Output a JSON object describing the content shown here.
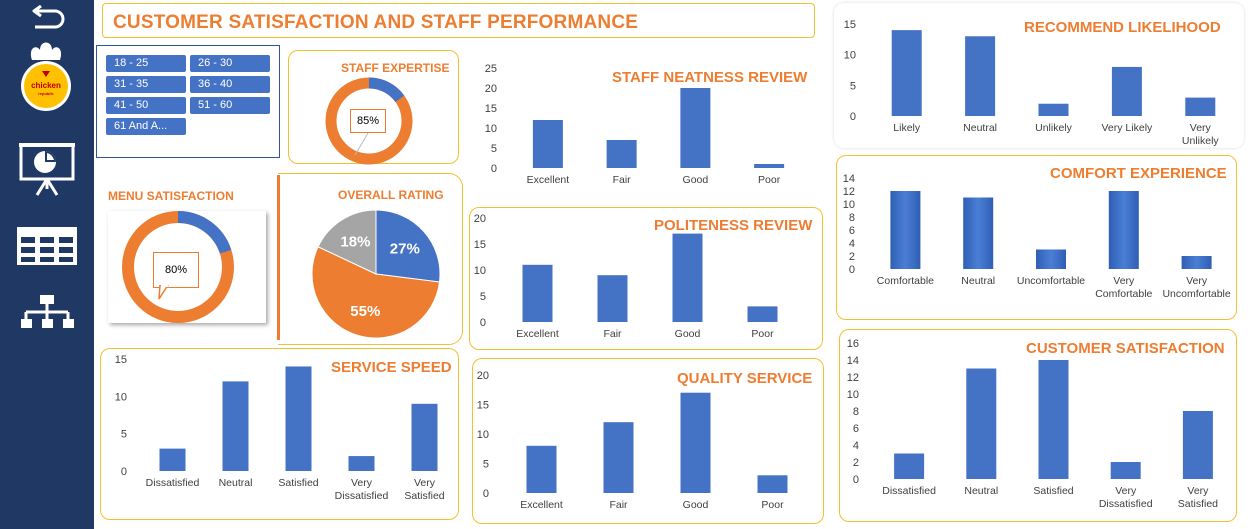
{
  "title": "CUSTOMER SATISFACTION AND STAFF PERFORMANCE",
  "logo": {
    "main": "chicken",
    "sub": "republic"
  },
  "sidebar": {
    "items": [
      {
        "name": "back",
        "icon": "back-arrow-icon"
      },
      {
        "name": "presentation",
        "icon": "presentation-board-icon"
      },
      {
        "name": "table",
        "icon": "table-grid-icon"
      },
      {
        "name": "hierarchy",
        "icon": "org-chart-icon"
      }
    ]
  },
  "age_slicer": {
    "options": [
      "18 - 25",
      "26 - 30",
      "31 - 35",
      "36 - 40",
      "41 - 50",
      "51 - 60",
      "61 And A..."
    ]
  },
  "colors": {
    "accent": "#ed7d31",
    "bar": "#4472c4",
    "border": "#f4c02f",
    "sidebar": "#1f3864",
    "grey": "#a5a5a5"
  },
  "staff_expertise": {
    "title": "STAFF EXPERTISE",
    "label": "85%",
    "value": 85
  },
  "menu_satisfaction": {
    "title": "MENU SATISFACTION",
    "label": "80%",
    "value": 80
  },
  "overall_rating": {
    "title": "OVERALL  RATING",
    "slices": [
      {
        "label": "27%",
        "value": 27,
        "color": "#4472c4"
      },
      {
        "label": "55%",
        "value": 55,
        "color": "#ed7d31"
      },
      {
        "label": "18%",
        "value": 18,
        "color": "#a5a5a5"
      }
    ]
  },
  "chart_data": [
    {
      "id": "service_speed",
      "type": "bar",
      "title": "SERVICE SPEED",
      "categories": [
        "Dissatisfied",
        "Neutral",
        "Satisfied",
        "Very Dissatisfied",
        "Very Satisfied"
      ],
      "values": [
        3,
        12,
        14,
        2,
        9
      ],
      "yticks": [
        "0",
        "5",
        "10",
        "15"
      ],
      "ylim": [
        0,
        15
      ]
    },
    {
      "id": "staff_neatness",
      "type": "bar",
      "title": "STAFF NEATNESS REVIEW",
      "categories": [
        "Excellent",
        "Fair",
        "Good",
        "Poor"
      ],
      "values": [
        12,
        7,
        20,
        1
      ],
      "yticks": [
        "0",
        "5",
        "10",
        "15",
        "20",
        "25"
      ],
      "ylim": [
        0,
        25
      ]
    },
    {
      "id": "politeness",
      "type": "bar",
      "title": "POLITENESS REVIEW",
      "categories": [
        "Excellent",
        "Fair",
        "Good",
        "Poor"
      ],
      "values": [
        11,
        9,
        17,
        3
      ],
      "yticks": [
        "0",
        "5",
        "10",
        "15",
        "20"
      ],
      "ylim": [
        0,
        20
      ]
    },
    {
      "id": "quality_service",
      "type": "bar",
      "title": "QUALITY SERVICE",
      "categories": [
        "Excellent",
        "Fair",
        "Good",
        "Poor"
      ],
      "values": [
        8,
        12,
        17,
        3
      ],
      "yticks": [
        "0",
        "5",
        "10",
        "15",
        "20"
      ],
      "ylim": [
        0,
        20
      ]
    },
    {
      "id": "recommend",
      "type": "bar",
      "title": "RECOMMEND LIKELIHOOD",
      "categories": [
        "Likely",
        "Neutral",
        "Unlikely",
        "Very Likely",
        "Very Unlikely"
      ],
      "values": [
        14,
        13,
        2,
        8,
        3
      ],
      "yticks": [
        "0",
        "5",
        "10",
        "15"
      ],
      "ylim": [
        0,
        15
      ]
    },
    {
      "id": "comfort",
      "type": "bar",
      "title": "COMFORT EXPERIENCE",
      "categories": [
        "Comfortable",
        "Neutral",
        "Uncomfortable",
        "Very Comfortable",
        "Very Uncomfortable"
      ],
      "values": [
        12,
        11,
        3,
        12,
        2
      ],
      "yticks": [
        "0",
        "2",
        "4",
        "6",
        "8",
        "10",
        "12",
        "14"
      ],
      "ylim": [
        0,
        14
      ]
    },
    {
      "id": "customer_satisfaction",
      "type": "bar",
      "title": "CUSTOMER SATISFACTION",
      "categories": [
        "Dissatisfied",
        "Neutral",
        "Satisfied",
        "Very Dissatisfied",
        "Very Satisfied"
      ],
      "values": [
        3,
        13,
        14,
        2,
        8
      ],
      "yticks": [
        "0",
        "2",
        "4",
        "6",
        "8",
        "10",
        "12",
        "14",
        "16"
      ],
      "ylim": [
        0,
        16
      ]
    }
  ]
}
